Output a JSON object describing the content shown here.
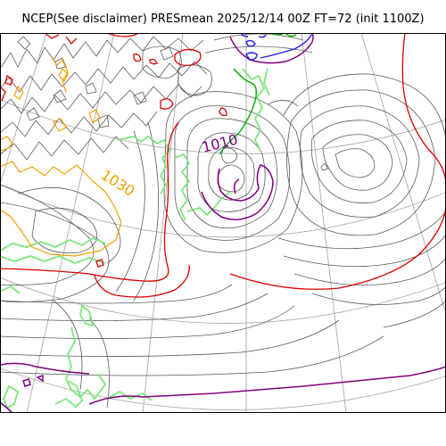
{
  "title": "NCEP(See disclaimer) PRESmean 2025/12/14 00Z FT=72 (init 1100Z)",
  "contour_labels": {
    "high": "1030",
    "low": "1010"
  },
  "colors": {
    "isobar": "#5a5a5a",
    "graticule": "#aaaaaa",
    "coast": "#7de67d",
    "red_contour": "#e00000",
    "orange_contour": "#f0a000",
    "purple_contour": "#800080",
    "blue_contour": "#1e1ee6",
    "green_contour": "#00b000"
  }
}
